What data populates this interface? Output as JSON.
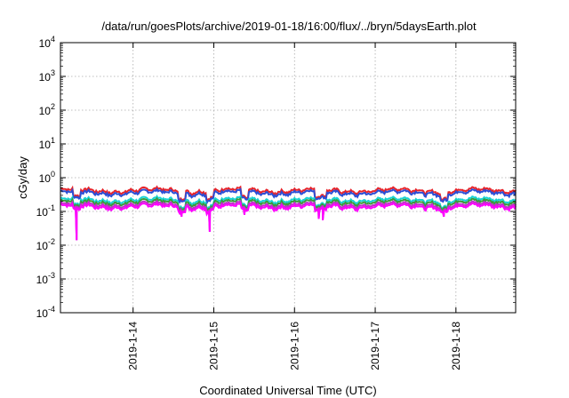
{
  "chart_data": {
    "type": "line",
    "title": "/data/run/goesPlots/archive/2019-01-18/16:00/flux/../bryn/5daysEarth.plot",
    "xlabel": "Coordinated Universal Time (UTC)",
    "ylabel": "cGy/day",
    "yscale": "log",
    "ylim": [
      0.0001,
      10000
    ],
    "xlim": [
      13.1,
      18.74
    ],
    "grid": true,
    "y_ticks": [
      {
        "base": "10",
        "exp": "-4"
      },
      {
        "base": "10",
        "exp": "-3"
      },
      {
        "base": "10",
        "exp": "-2"
      },
      {
        "base": "10",
        "exp": "-1"
      },
      {
        "base": "10",
        "exp": "0"
      },
      {
        "base": "10",
        "exp": "1"
      },
      {
        "base": "10",
        "exp": "2"
      },
      {
        "base": "10",
        "exp": "3"
      },
      {
        "base": "10",
        "exp": "4"
      }
    ],
    "x_ticks": [
      {
        "day": 14,
        "label": "2019-1-14"
      },
      {
        "day": 15,
        "label": "2019-1-15"
      },
      {
        "day": 16,
        "label": "2019-1-16"
      },
      {
        "day": 17,
        "label": "2019-1-17"
      },
      {
        "day": 18,
        "label": "2019-1-18"
      }
    ],
    "series": [
      {
        "color": "#e8242a",
        "baseline": 0.42
      },
      {
        "color": "#2b4fd6",
        "baseline": 0.36
      },
      {
        "color": "#19d4d4",
        "baseline": 0.22
      },
      {
        "color": "#3a9a3a",
        "baseline": 0.19
      },
      {
        "color": "#c030c8",
        "baseline": 0.16
      },
      {
        "color": "#ff00ff",
        "baseline": 0.14
      }
    ],
    "dips": [
      {
        "day": 13.3,
        "min": 0.014
      },
      {
        "day": 14.6,
        "min": 0.07
      },
      {
        "day": 14.95,
        "min": 0.025
      },
      {
        "day": 15.38,
        "min": 0.08
      },
      {
        "day": 16.3,
        "min": 0.06
      },
      {
        "day": 16.35,
        "min": 0.055
      },
      {
        "day": 17.85,
        "min": 0.07
      }
    ]
  }
}
